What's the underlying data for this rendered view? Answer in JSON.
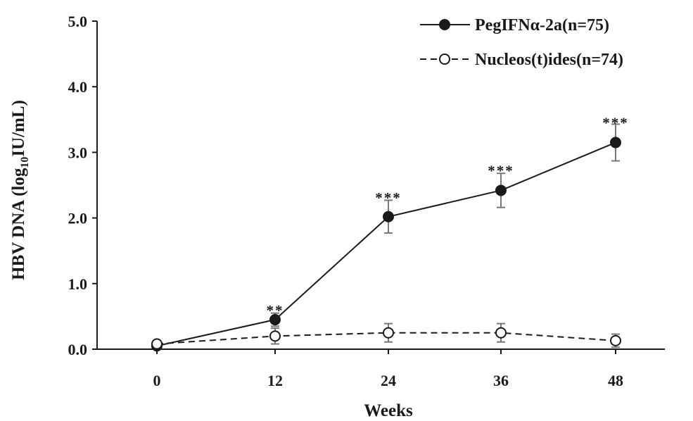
{
  "chart_data": {
    "type": "line",
    "xlabel": "Weeks",
    "ylabel_main": "HBV DNA (log",
    "ylabel_sub": "10",
    "ylabel_tail": "IU/mL)",
    "x": [
      0,
      12,
      24,
      36,
      48
    ],
    "x_tick_labels": [
      "0",
      "12",
      "24",
      "36",
      "48"
    ],
    "ylim": [
      0,
      5
    ],
    "y_ticks": [
      0,
      1,
      2,
      3,
      4,
      5
    ],
    "y_tick_labels": [
      "0.0",
      "1.0",
      "2.0",
      "3.0",
      "4.0",
      "5.0"
    ],
    "grid": false,
    "legend_position": "top-right",
    "series": [
      {
        "name": "PegIFNα-2a(n=75)",
        "style": "solid",
        "marker": "filled-circle",
        "values": [
          0.05,
          0.45,
          2.02,
          2.42,
          3.15
        ],
        "error": [
          0.0,
          0.1,
          0.25,
          0.26,
          0.28
        ]
      },
      {
        "name": "Nucleos(t)ides(n=74)",
        "style": "dashed",
        "marker": "open-circle",
        "values": [
          0.08,
          0.2,
          0.25,
          0.25,
          0.13
        ],
        "error": [
          0.0,
          0.12,
          0.14,
          0.14,
          0.1
        ]
      }
    ],
    "annotations": [
      {
        "x": 12,
        "y": 0.62,
        "text": "**"
      },
      {
        "x": 24,
        "y": 2.34,
        "text": "***"
      },
      {
        "x": 36,
        "y": 2.75,
        "text": "***"
      },
      {
        "x": 48,
        "y": 3.48,
        "text": "***"
      }
    ],
    "colors": {
      "line": "#1a1a1a",
      "errorbar": "#777777",
      "background": "#ffffff"
    }
  }
}
